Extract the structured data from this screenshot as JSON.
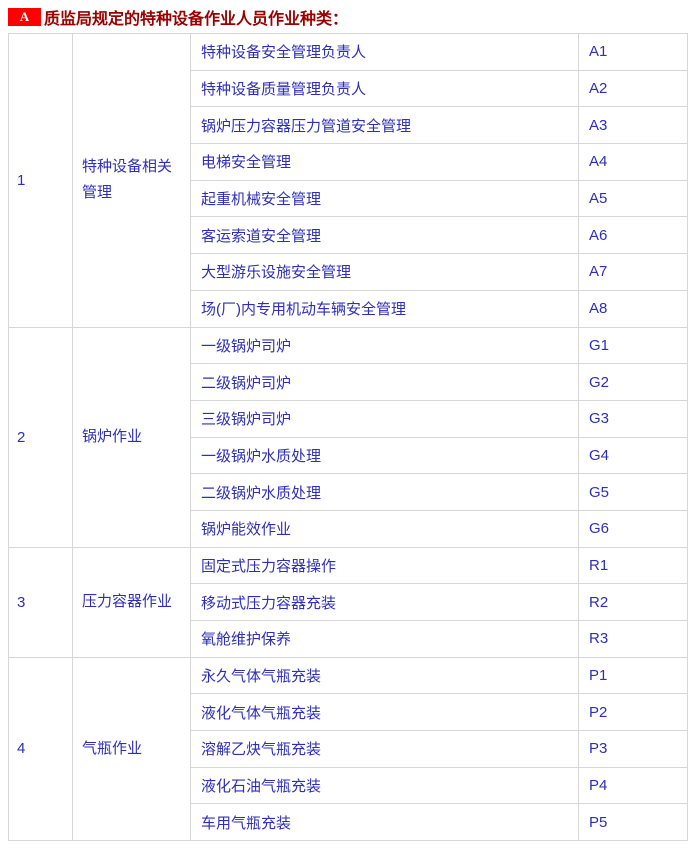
{
  "page": {
    "badge_label": "A",
    "title": "质监局规定的特种设备作业人员作业种类：",
    "colors": {
      "title_text": "#990000",
      "badge_background": "#fe0000",
      "badge_text": "#ffffff",
      "table_text": "#2e2eb8",
      "table_border": "#d6d6d6",
      "background": "#ffffff"
    }
  },
  "table": {
    "groups": [
      {
        "no": "1",
        "category": "特种设备相关管理",
        "rows": [
          {
            "item": "特种设备安全管理负责人",
            "code": "A1"
          },
          {
            "item": "特种设备质量管理负责人",
            "code": "A2"
          },
          {
            "item": "锅炉压力容器压力管道安全管理",
            "code": "A3"
          },
          {
            "item": "电梯安全管理",
            "code": "A4"
          },
          {
            "item": "起重机械安全管理",
            "code": "A5"
          },
          {
            "item": "客运索道安全管理",
            "code": "A6"
          },
          {
            "item": "大型游乐设施安全管理",
            "code": "A7"
          },
          {
            "item": "场(厂)内专用机动车辆安全管理",
            "code": "A8"
          }
        ]
      },
      {
        "no": "2",
        "category": "锅炉作业",
        "rows": [
          {
            "item": "一级锅炉司炉",
            "code": "G1"
          },
          {
            "item": "二级锅炉司炉",
            "code": "G2"
          },
          {
            "item": "三级锅炉司炉",
            "code": "G3"
          },
          {
            "item": "一级锅炉水质处理",
            "code": "G4"
          },
          {
            "item": "二级锅炉水质处理",
            "code": "G5"
          },
          {
            "item": "锅炉能效作业",
            "code": "G6"
          }
        ]
      },
      {
        "no": "3",
        "category": "压力容器作业",
        "rows": [
          {
            "item": "固定式压力容器操作",
            "code": "R1"
          },
          {
            "item": "移动式压力容器充装",
            "code": "R2"
          },
          {
            "item": "氧舱维护保养",
            "code": "R3"
          }
        ]
      },
      {
        "no": "4",
        "category": "气瓶作业",
        "rows": [
          {
            "item": "永久气体气瓶充装",
            "code": "P1"
          },
          {
            "item": "液化气体气瓶充装",
            "code": "P2"
          },
          {
            "item": "溶解乙炔气瓶充装",
            "code": "P3"
          },
          {
            "item": "液化石油气瓶充装",
            "code": "P4"
          },
          {
            "item": "车用气瓶充装",
            "code": "P5"
          }
        ]
      }
    ]
  }
}
